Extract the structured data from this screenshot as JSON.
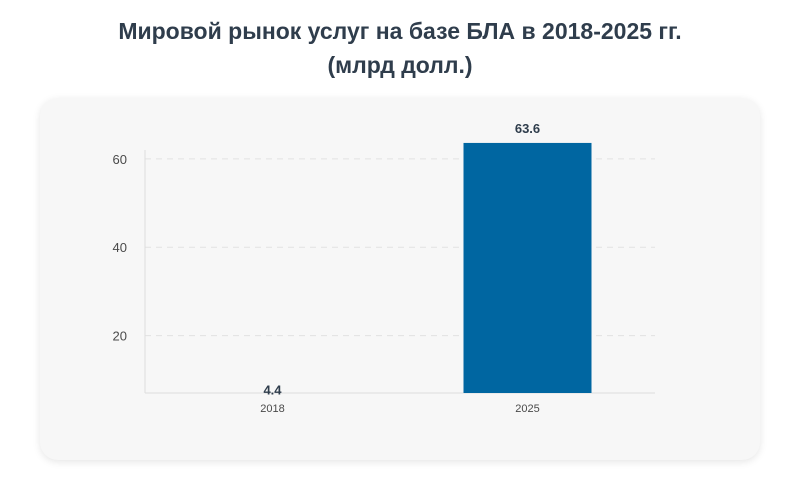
{
  "title_line1": "Мировой рынок услуг на базе БЛА в 2018-2025 гг.",
  "title_line2": "(млрд долл.)",
  "chart_data": {
    "type": "bar",
    "categories": [
      "2018",
      "2025"
    ],
    "values": [
      4.4,
      63.6
    ],
    "data_labels": [
      "4.4",
      "63.6"
    ],
    "bar_colors": [
      "#5bc0f0",
      "#0066a1"
    ],
    "yticks": [
      20,
      40,
      60
    ],
    "ylim": [
      7,
      62
    ],
    "grid": true,
    "xlabel": "",
    "ylabel": ""
  }
}
